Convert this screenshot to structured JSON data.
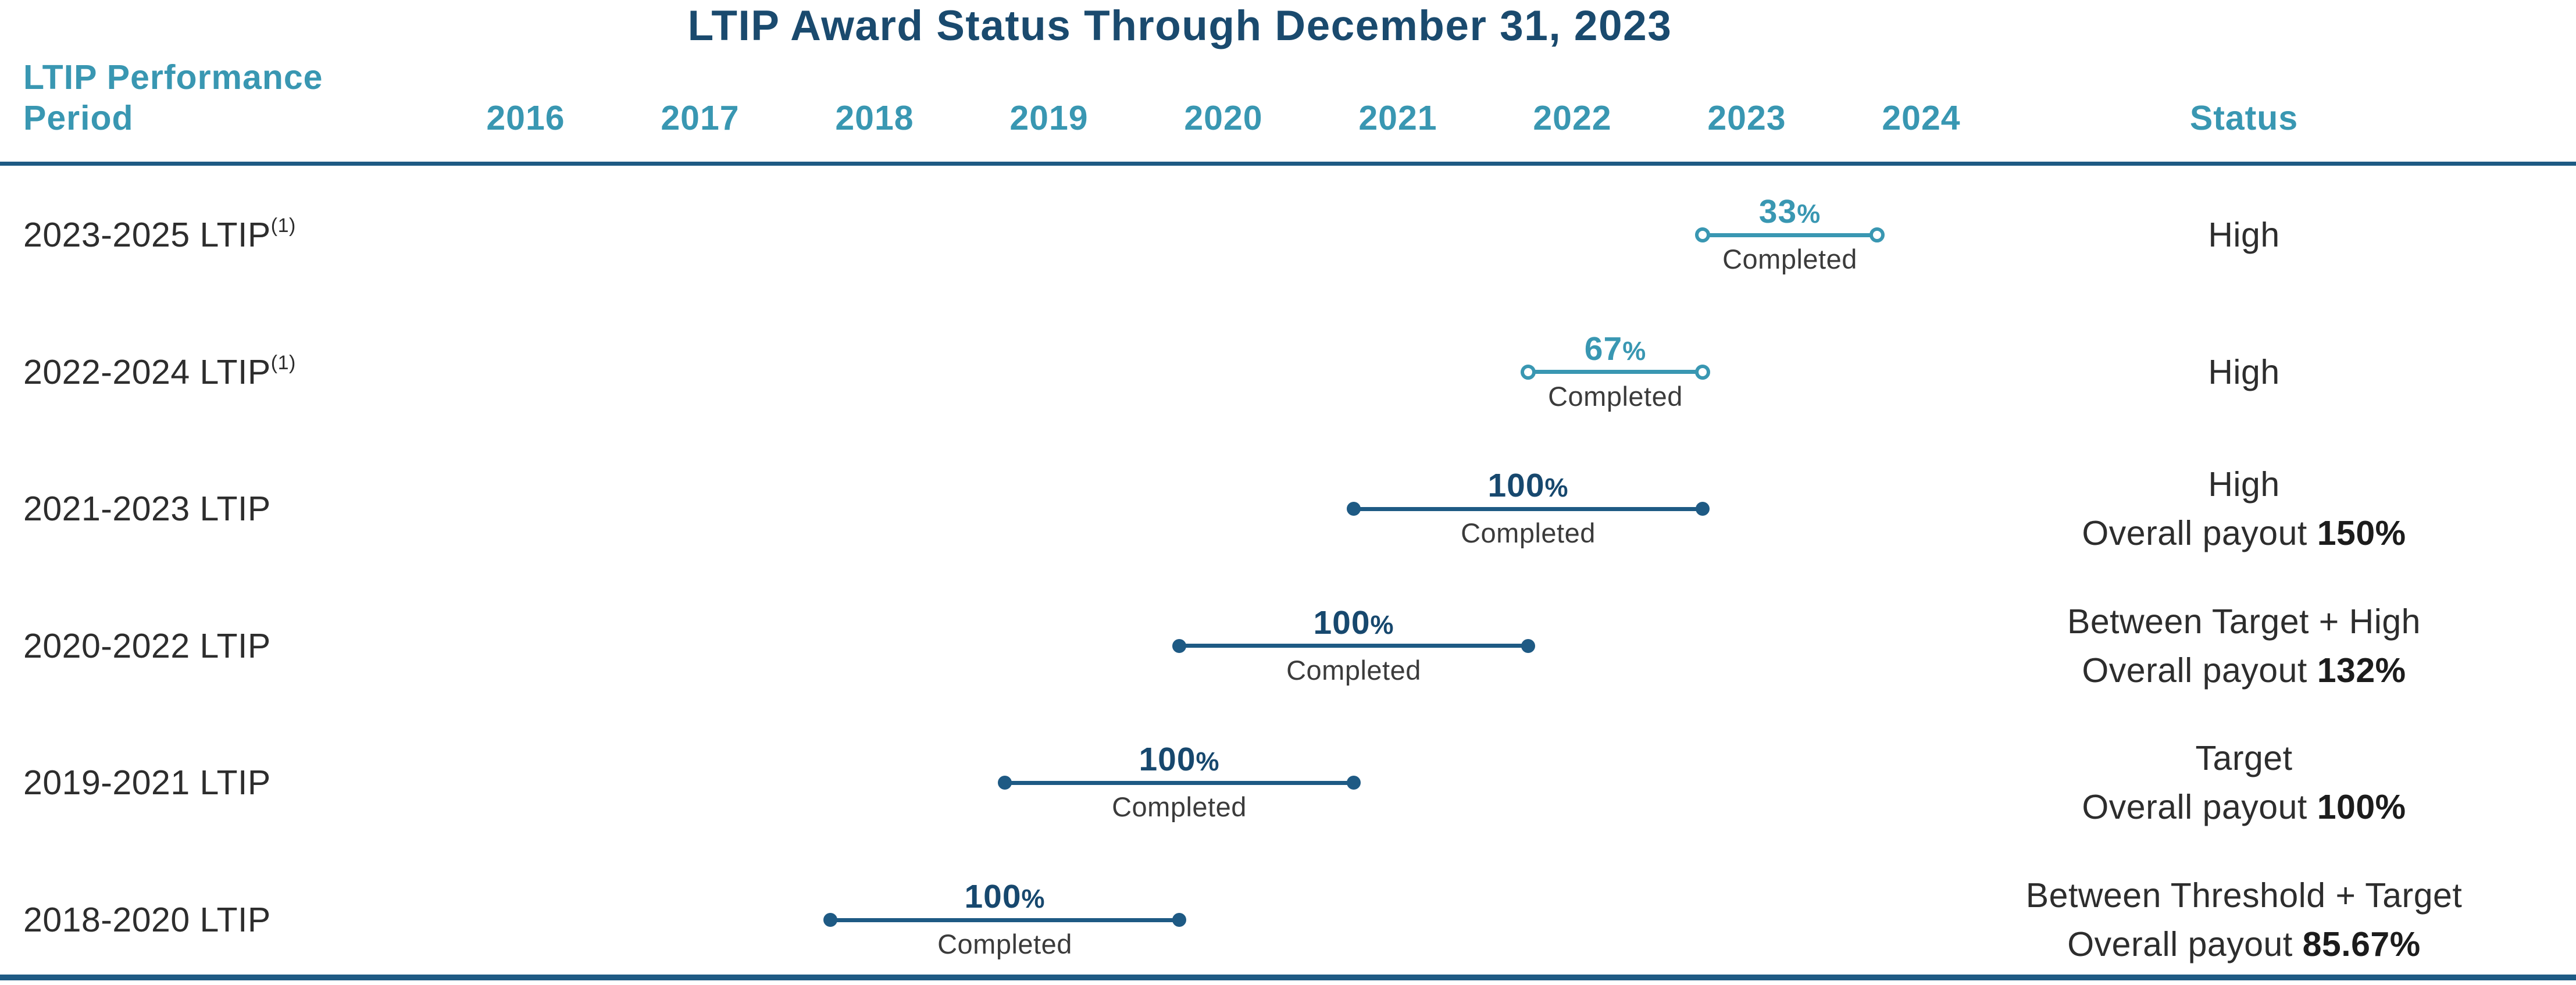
{
  "title": "LTIP Award Status Through December 31, 2023",
  "colors": {
    "navy": "#1a4a6e",
    "teal": "#3997b2",
    "bar_dark": "#1e5a84",
    "rule": "#1e5a84",
    "pct_dark": "#17486e",
    "text_dark": "#2d2d2d",
    "completed_gray": "#3b3b3b"
  },
  "header": {
    "period_label_line1": "LTIP Performance",
    "period_label_line2": "Period",
    "years": [
      "2016",
      "2017",
      "2018",
      "2019",
      "2020",
      "2021",
      "2022",
      "2023",
      "2024"
    ],
    "status_label": "Status"
  },
  "chart_data": {
    "type": "bar",
    "subtype": "horizontal-timeline-gantt",
    "title": "LTIP Award Status Through December 31, 2023",
    "x_axis_years": [
      2016,
      2017,
      2018,
      2019,
      2020,
      2021,
      2022,
      2023,
      2024
    ],
    "rows": [
      {
        "label": "2023-2025 LTIP",
        "sup": "(1)",
        "percent_complete": 33,
        "percent_text": "33",
        "unit": "%",
        "caption": "Completed",
        "bar": {
          "from_year": 2023,
          "to_year": 2024,
          "style": "teal"
        },
        "status": [
          {
            "prefix": "High",
            "bold": ""
          }
        ]
      },
      {
        "label": "2022-2024 LTIP",
        "sup": "(1)",
        "percent_complete": 67,
        "percent_text": "67",
        "unit": "%",
        "caption": "Completed",
        "bar": {
          "from_year": 2022,
          "to_year": 2023,
          "style": "teal"
        },
        "status": [
          {
            "prefix": "High",
            "bold": ""
          }
        ]
      },
      {
        "label": "2021-2023 LTIP",
        "sup": "",
        "percent_complete": 100,
        "percent_text": "100",
        "unit": "%",
        "caption": "Completed",
        "bar": {
          "from_year": 2021,
          "to_year": 2023,
          "style": "dark"
        },
        "status": [
          {
            "prefix": "High",
            "bold": ""
          },
          {
            "prefix": "Overall payout ",
            "bold": "150%"
          }
        ]
      },
      {
        "label": "2020-2022 LTIP",
        "sup": "",
        "percent_complete": 100,
        "percent_text": "100",
        "unit": "%",
        "caption": "Completed",
        "bar": {
          "from_year": 2020,
          "to_year": 2022,
          "style": "dark"
        },
        "status": [
          {
            "prefix": "Between Target + High",
            "bold": ""
          },
          {
            "prefix": "Overall payout ",
            "bold": "132%"
          }
        ]
      },
      {
        "label": "2019-2021 LTIP",
        "sup": "",
        "percent_complete": 100,
        "percent_text": "100",
        "unit": "%",
        "caption": "Completed",
        "bar": {
          "from_year": 2019,
          "to_year": 2021,
          "style": "dark"
        },
        "status": [
          {
            "prefix": "Target",
            "bold": ""
          },
          {
            "prefix": "Overall payout ",
            "bold": "100%"
          }
        ]
      },
      {
        "label": "2018-2020 LTIP",
        "sup": "",
        "percent_complete": 100,
        "percent_text": "100",
        "unit": "%",
        "caption": "Completed",
        "bar": {
          "from_year": 2018,
          "to_year": 2020,
          "style": "dark"
        },
        "status": [
          {
            "prefix": "Between Threshold + Target",
            "bold": ""
          },
          {
            "prefix": "Overall payout ",
            "bold": "85.67%"
          }
        ]
      }
    ]
  }
}
